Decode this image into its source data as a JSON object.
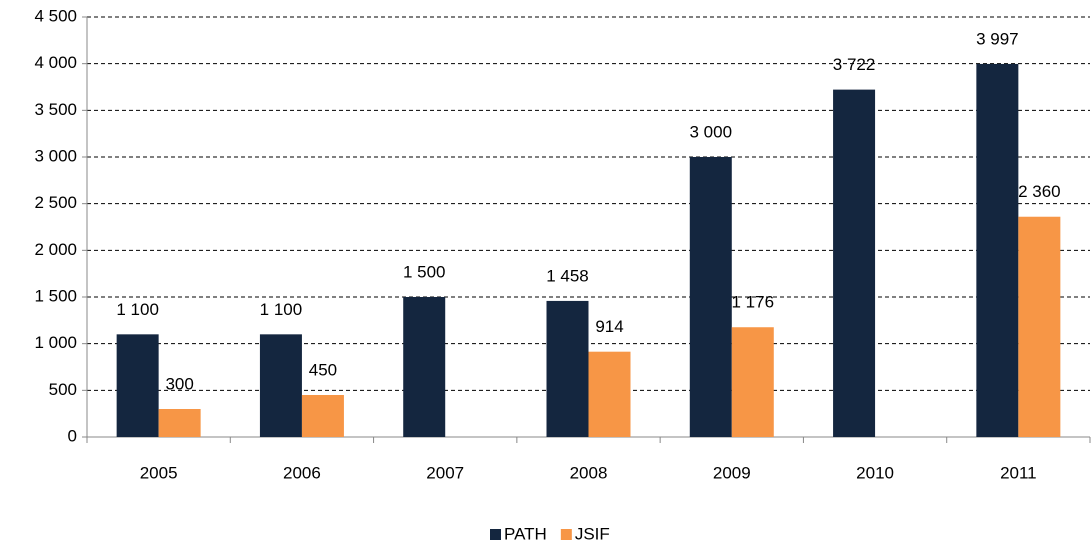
{
  "chart_data": {
    "type": "bar",
    "categories": [
      "2005",
      "2006",
      "2007",
      "2008",
      "2009",
      "2010",
      "2011"
    ],
    "series": [
      {
        "name": "PATH",
        "color": "#14263f",
        "values": [
          1100,
          1100,
          1500,
          1458,
          3000,
          3722,
          3997
        ],
        "value_labels": [
          "1 100",
          "1 100",
          "1 500",
          "1 458",
          "3 000",
          "3 722",
          "3 997"
        ]
      },
      {
        "name": "JSIF",
        "color": "#f79646",
        "values": [
          300,
          450,
          null,
          914,
          1176,
          null,
          2360
        ],
        "value_labels": [
          "300",
          "450",
          null,
          "914",
          "1 176",
          null,
          "2 360"
        ]
      }
    ],
    "ylim": [
      0,
      4500
    ],
    "yticks": [
      0,
      500,
      {
        "value": 1000,
        "label": "1 000"
      },
      {
        "value": 1500,
        "label": "1 500"
      },
      {
        "value": 2000,
        "label": "2 000"
      },
      {
        "value": 2500,
        "label": "2 500"
      },
      {
        "value": 3000,
        "label": "3 000"
      },
      {
        "value": 3500,
        "label": "3 500"
      },
      {
        "value": 4000,
        "label": "4 000"
      },
      {
        "value": 4500,
        "label": "4 500"
      }
    ],
    "grid": true,
    "legend": "bottom"
  }
}
